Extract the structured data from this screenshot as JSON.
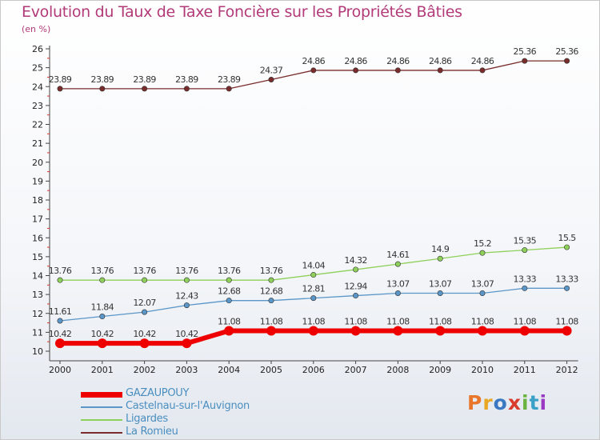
{
  "title": "Evolution du Taux de Taxe Foncière sur les Propriétés Bâties",
  "unit_label": "(en %)",
  "logo": {
    "text": "Proxiti",
    "colors": [
      "#e8762b",
      "#e8a825",
      "#3a78c2",
      "#d93b2c",
      "#6bb33f",
      "#3aa0c8",
      "#9b3ac2"
    ]
  },
  "chart_data": {
    "type": "line",
    "title": "Evolution du Taux de Taxe Foncière sur les Propriétés Bâties",
    "ylabel": "(en %)",
    "xlabel": "",
    "ylim": [
      10,
      26
    ],
    "grid": false,
    "legend_placement": "bottom-left",
    "categories": [
      "2000",
      "2001",
      "2002",
      "2003",
      "2004",
      "2005",
      "2006",
      "2007",
      "2008",
      "2009",
      "2010",
      "2011",
      "2012"
    ],
    "yticks": [
      "10",
      "11",
      "12",
      "13",
      "14",
      "15",
      "16",
      "17",
      "18",
      "19",
      "20",
      "21",
      "22",
      "23",
      "24",
      "25",
      "26"
    ],
    "series": [
      {
        "name": "GAZAUPOUY",
        "color": "#ee0000",
        "values": [
          10.42,
          10.42,
          10.42,
          10.42,
          11.08,
          11.08,
          11.08,
          11.08,
          11.08,
          11.08,
          11.08,
          11.08,
          11.08
        ],
        "labels": [
          "10.42",
          "10.42",
          "10.42",
          "10.42",
          "11.08",
          "11.08",
          "11.08",
          "11.08",
          "11.08",
          "11.08",
          "11.08",
          "11.08",
          "11.08"
        ]
      },
      {
        "name": "Castelnau-sur-l'Auvignon",
        "color": "#5a96c8",
        "values": [
          11.61,
          11.84,
          12.07,
          12.43,
          12.68,
          12.68,
          12.81,
          12.94,
          13.07,
          13.07,
          13.07,
          13.33,
          13.33
        ],
        "labels": [
          "11.61",
          "11.84",
          "12.07",
          "12.43",
          "12.68",
          "12.68",
          "12.81",
          "12.94",
          "13.07",
          "13.07",
          "13.07",
          "13.33",
          "13.33"
        ]
      },
      {
        "name": "Ligardes",
        "color": "#8fd05a",
        "values": [
          13.76,
          13.76,
          13.76,
          13.76,
          13.76,
          13.76,
          14.04,
          14.32,
          14.61,
          14.9,
          15.2,
          15.35,
          15.5
        ],
        "labels": [
          "13.76",
          "13.76",
          "13.76",
          "13.76",
          "13.76",
          "13.76",
          "14.04",
          "14.32",
          "14.61",
          "14.9",
          "15.2",
          "15.35",
          "15.5"
        ]
      },
      {
        "name": "La Romieu",
        "color": "#7a2c2c",
        "values": [
          23.89,
          23.89,
          23.89,
          23.89,
          23.89,
          24.37,
          24.86,
          24.86,
          24.86,
          24.86,
          24.86,
          25.36,
          25.36
        ],
        "labels": [
          "23.89",
          "23.89",
          "23.89",
          "23.89",
          "23.89",
          "24.37",
          "24.86",
          "24.86",
          "24.86",
          "24.86",
          "24.86",
          "25.36",
          "25.36"
        ]
      }
    ]
  }
}
